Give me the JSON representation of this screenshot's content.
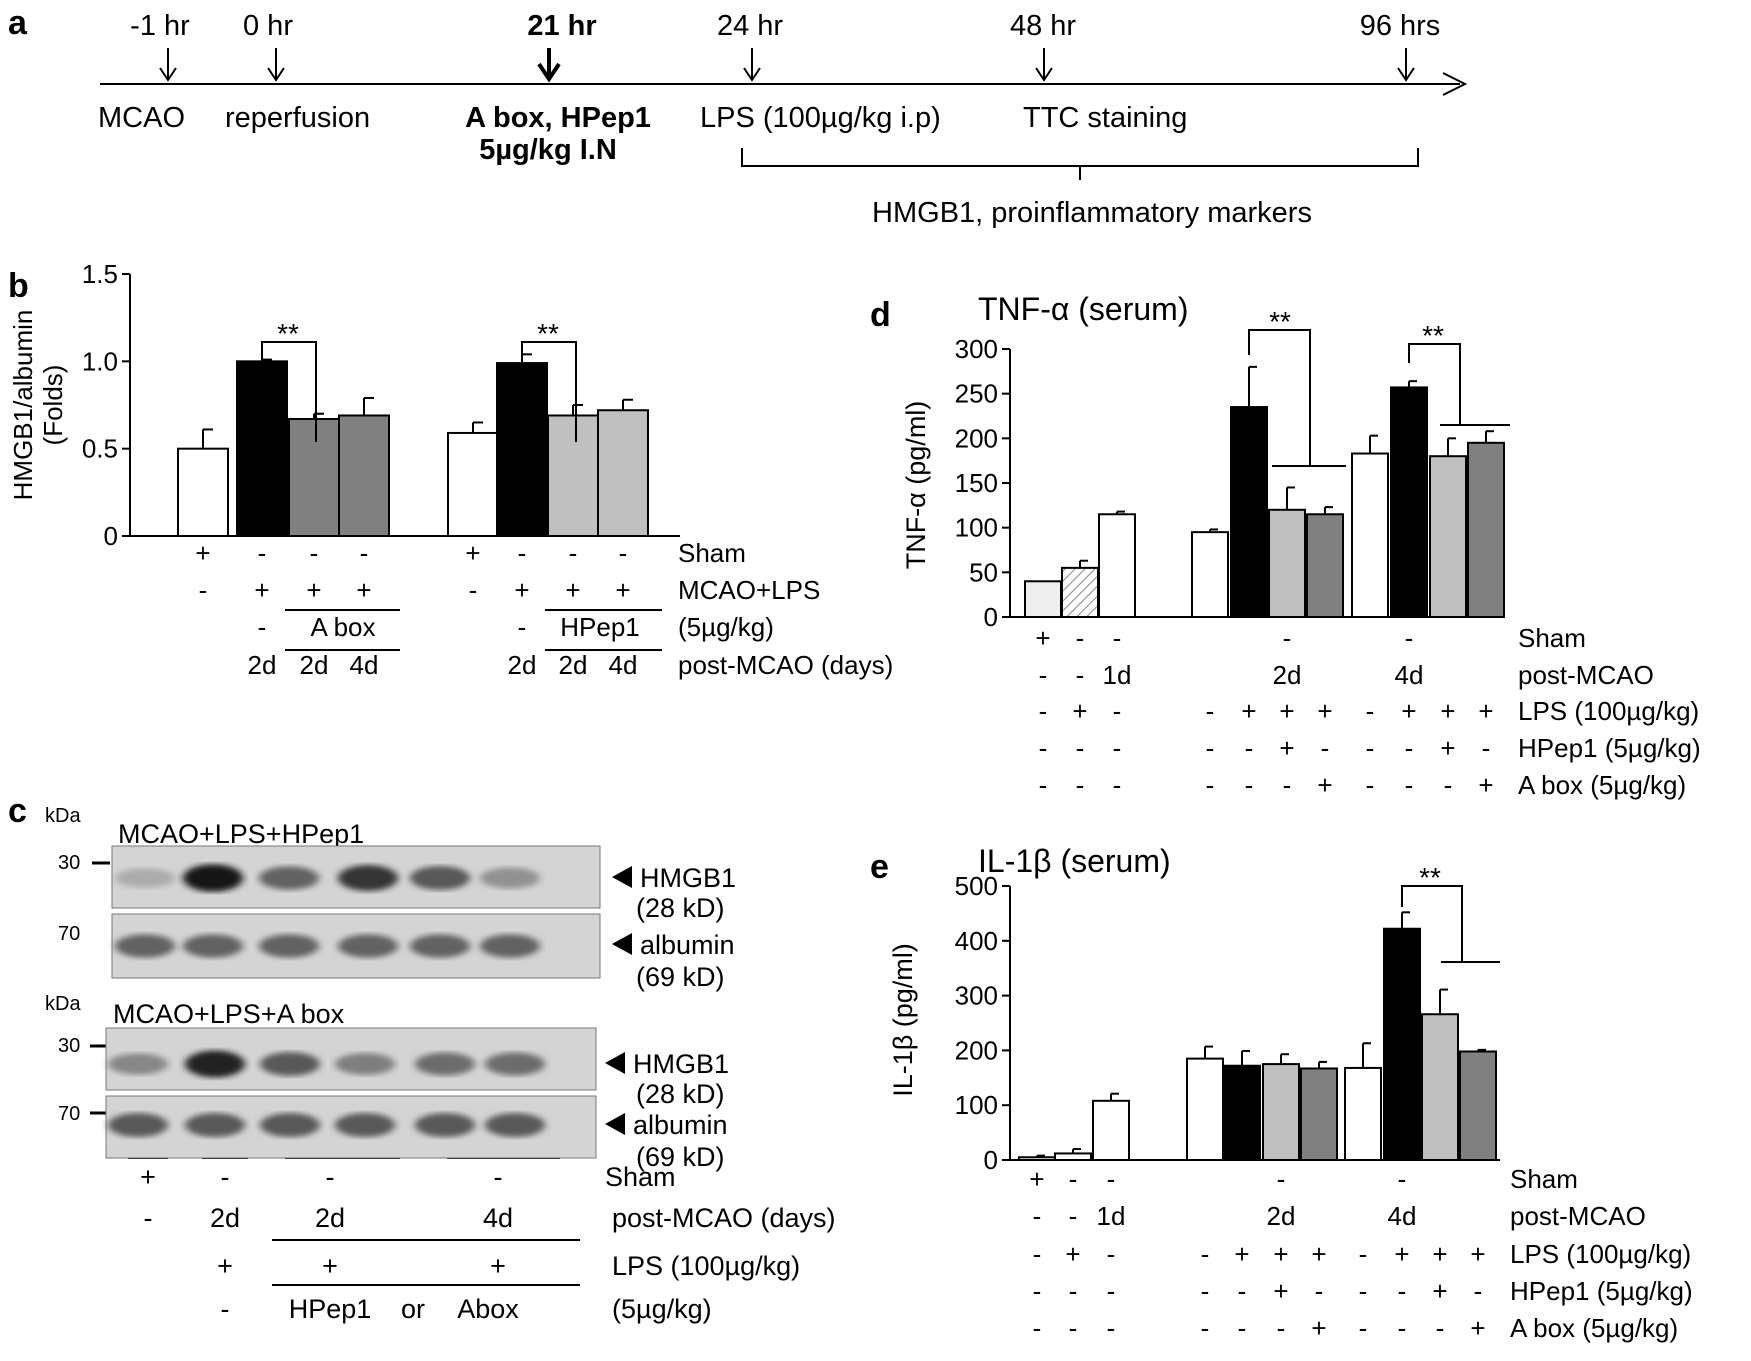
{
  "panel_letters": {
    "a": "a",
    "b": "b",
    "c": "c",
    "d": "d",
    "e": "e"
  },
  "timeline": {
    "times": [
      "-1 hr",
      "0 hr",
      "21 hr",
      "24 hr",
      "48 hr",
      "96 hrs"
    ],
    "events": [
      "MCAO",
      "reperfusion",
      "A box, HPep1",
      "LPS (100µg/kg i.p)",
      "TTC staining"
    ],
    "dose": "5µg/kg I.N",
    "bracket_label": "HMGB1, proinflammatory markers"
  },
  "chart_data": [
    {
      "id": "b",
      "type": "bar",
      "ylabel": [
        "HMGB1/albumin",
        "(Folds)"
      ],
      "ylim": [
        0,
        1.5
      ],
      "yticks": [
        "0",
        "0.5",
        "1.0",
        "1.5"
      ],
      "values": [
        0.5,
        1.0,
        0.67,
        0.69,
        0.59,
        0.99,
        0.69,
        0.72
      ],
      "errors": [
        0.11,
        0.01,
        0.03,
        0.1,
        0.06,
        0.05,
        0.06,
        0.06
      ],
      "fills": [
        "#ffffff",
        "#000000",
        "#808080",
        "#808080",
        "#ffffff",
        "#000000",
        "#c0c0c0",
        "#c0c0c0"
      ],
      "significance": [
        "**",
        "**"
      ],
      "rows": [
        {
          "label": "Sham",
          "cells": [
            "+",
            "-",
            "-",
            "-",
            "+",
            "-",
            "-",
            "-"
          ]
        },
        {
          "label": "MCAO+LPS",
          "cells": [
            "-",
            "+",
            "+",
            "+",
            "-",
            "+",
            "+",
            "+"
          ]
        },
        {
          "label": "(5µg/kg)",
          "cells": [
            "",
            "-",
            "A box",
            "",
            "",
            "-",
            "HPep1",
            ""
          ]
        },
        {
          "label": "post-MCAO (days)",
          "cells": [
            "",
            "2d",
            "2d",
            "4d",
            "",
            "2d",
            "2d",
            "4d"
          ]
        }
      ]
    },
    {
      "id": "d",
      "type": "bar",
      "title": "TNF-α (serum)",
      "ylabel": "TNF-α (pg/ml)",
      "ylim": [
        0,
        300
      ],
      "yticks": [
        "0",
        "50",
        "100",
        "150",
        "200",
        "250",
        "300"
      ],
      "values": [
        40,
        55,
        115,
        95,
        235,
        120,
        115,
        183,
        257,
        180,
        195
      ],
      "errors": [
        0,
        8,
        3,
        3,
        45,
        25,
        8,
        20,
        7,
        20,
        13
      ],
      "fills": [
        "#eeeeee",
        "hatch",
        "#ffffff",
        "#ffffff",
        "#000000",
        "#c0c0c0",
        "#808080",
        "#ffffff",
        "#000000",
        "#c0c0c0",
        "#808080"
      ],
      "significance": [
        "**",
        "**"
      ],
      "groups": [
        "1d",
        "2d",
        "4d"
      ],
      "rows": [
        {
          "label": "Sham",
          "cells": [
            "+",
            "-",
            "-",
            "",
            "",
            "-",
            "",
            "",
            "-",
            "",
            ""
          ]
        },
        {
          "label": "post-MCAO",
          "cells": [
            "-",
            "-",
            "1d",
            "",
            "",
            "2d",
            "",
            "",
            "4d",
            "",
            ""
          ]
        },
        {
          "label": "LPS (100µg/kg)",
          "cells": [
            "-",
            "+",
            "-",
            "-",
            "+",
            "+",
            "+",
            "-",
            "+",
            "+",
            "+"
          ]
        },
        {
          "label": "HPep1 (5µg/kg)",
          "cells": [
            "-",
            "-",
            "-",
            "-",
            "-",
            "+",
            "-",
            "-",
            "-",
            "+",
            "-"
          ]
        },
        {
          "label": "A box (5µg/kg)",
          "cells": [
            "-",
            "-",
            "-",
            "-",
            "-",
            "-",
            "+",
            "-",
            "-",
            "-",
            "+"
          ]
        }
      ]
    },
    {
      "id": "e",
      "type": "bar",
      "title": "IL-1β (serum)",
      "ylabel": "IL-1β (pg/ml)",
      "ylim": [
        0,
        500
      ],
      "yticks": [
        "0",
        "100",
        "200",
        "300",
        "400",
        "500"
      ],
      "values": [
        5,
        12,
        108,
        185,
        172,
        175,
        167,
        168,
        422,
        266,
        198
      ],
      "errors": [
        3,
        8,
        13,
        22,
        27,
        18,
        12,
        45,
        30,
        45,
        3
      ],
      "fills": [
        "#ffffff",
        "#ffffff",
        "#ffffff",
        "#ffffff",
        "#000000",
        "#c0c0c0",
        "#808080",
        "#ffffff",
        "#000000",
        "#c0c0c0",
        "#808080"
      ],
      "significance": [
        "**"
      ],
      "rows": [
        {
          "label": "Sham",
          "cells": [
            "+",
            "-",
            "-",
            "",
            "",
            "-",
            "",
            "",
            "-",
            "",
            ""
          ]
        },
        {
          "label": "post-MCAO",
          "cells": [
            "-",
            "-",
            "1d",
            "",
            "",
            "2d",
            "",
            "",
            "4d",
            "",
            ""
          ]
        },
        {
          "label": "LPS (100µg/kg)",
          "cells": [
            "-",
            "+",
            "-",
            "-",
            "+",
            "+",
            "+",
            "-",
            "+",
            "+",
            "+"
          ]
        },
        {
          "label": "HPep1 (5µg/kg)",
          "cells": [
            "-",
            "-",
            "-",
            "-",
            "-",
            "+",
            "-",
            "-",
            "-",
            "+",
            "-"
          ]
        },
        {
          "label": "A box (5µg/kg)",
          "cells": [
            "-",
            "-",
            "-",
            "-",
            "-",
            "-",
            "+",
            "-",
            "-",
            "-",
            "+"
          ]
        }
      ]
    }
  ],
  "blot": {
    "kda": "kDa",
    "marker_30": "30",
    "marker_70": "70",
    "title_top": "MCAO+LPS+HPep1",
    "title_bottom": "MCAO+LPS+A box",
    "hmgb1": "HMGB1",
    "hmgb1_kd": "(28 kD)",
    "albumin": "albumin",
    "albumin_kd": "(69 kD)",
    "hmgb1_intensity_top": [
      0.15,
      0.95,
      0.55,
      0.8,
      0.6,
      0.3
    ],
    "hmgb1_intensity_bottom": [
      0.35,
      0.9,
      0.6,
      0.4,
      0.5,
      0.5
    ],
    "row_sham": [
      "+",
      "-",
      "-",
      "-"
    ],
    "row_sham_label": "Sham",
    "row_days": [
      "-",
      "2d",
      "2d",
      "4d"
    ],
    "row_days_label": "post-MCAO (days)",
    "row_lps": [
      "",
      "+",
      "+",
      "+"
    ],
    "row_lps_label": "LPS (100µg/kg)",
    "row_treat": [
      "-",
      "HPep1",
      "or",
      "Abox"
    ],
    "row_treat_label": "(5µg/kg)"
  }
}
